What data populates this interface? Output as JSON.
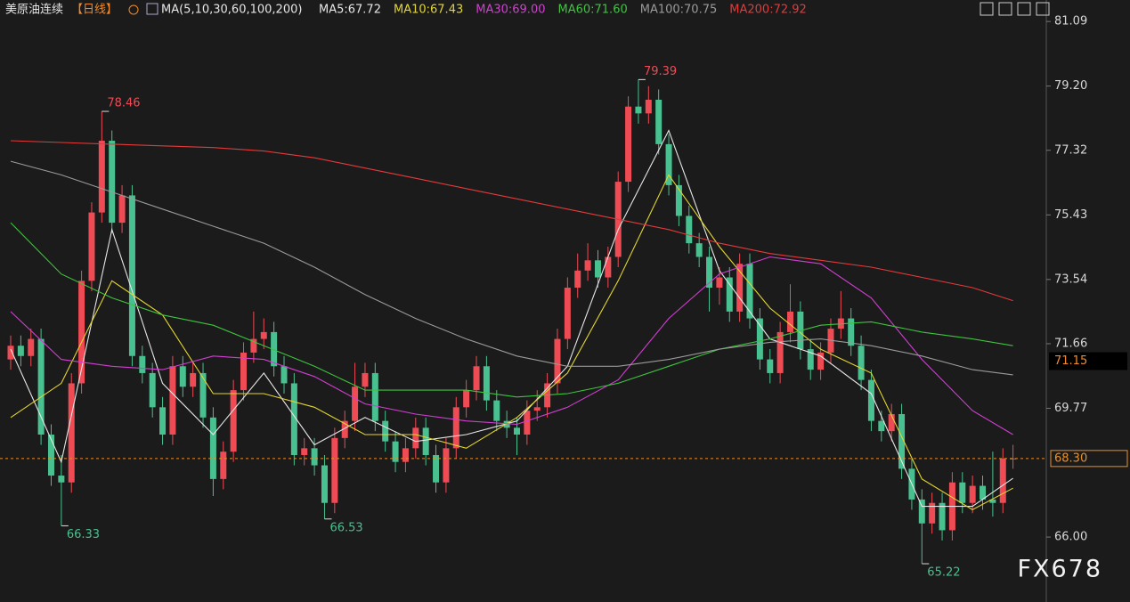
{
  "chart_data": {
    "type": "candlestick",
    "title": "美原油连续",
    "period": "【日线】",
    "indicator": "MA(5,10,30,60,100,200)",
    "watermark": "FX678",
    "up_color": "#ee4b55",
    "down_color": "#49c08f",
    "ylim": [
      64.1,
      81.25
    ],
    "yticks": [
      {
        "value": 66.0,
        "label": "66.00"
      },
      69.77,
      71.66,
      73.54,
      75.43,
      77.32,
      {
        "value": 79.2,
        "label": "79.20"
      },
      81.09
    ],
    "last_price": {
      "value": 68.3,
      "label": "68.30"
    },
    "cursor_price": 71.15,
    "open": [
      71.2,
      71.6,
      71.3,
      71.8,
      69.0,
      67.8,
      67.6,
      70.5,
      73.5,
      75.5,
      77.6,
      75.2,
      76.0,
      71.3,
      70.8,
      69.8,
      69.0,
      71.0,
      70.4,
      70.8,
      69.5,
      67.7,
      68.5,
      70.3,
      71.4,
      71.8,
      72.0,
      71.0,
      70.5,
      68.4,
      68.6,
      68.1,
      67.0,
      68.9,
      69.4,
      70.4,
      70.8,
      69.4,
      68.8,
      68.2,
      68.6,
      69.2,
      68.4,
      67.6,
      68.6,
      69.8,
      70.3,
      71.0,
      70.0,
      69.4,
      69.2,
      69.0,
      69.7,
      69.8,
      70.5,
      71.8,
      73.3,
      73.8,
      74.1,
      73.6,
      74.2,
      76.4,
      78.6,
      78.4,
      78.8,
      77.5,
      76.3,
      75.4,
      74.6,
      74.2,
      73.3,
      73.6,
      72.6,
      74.0,
      72.4,
      71.2,
      70.8,
      72.0,
      72.6,
      71.5,
      70.9,
      71.4,
      72.1,
      72.4,
      71.6,
      70.6,
      69.4,
      69.1,
      69.6,
      68.0,
      67.1,
      66.4,
      67.0,
      66.2,
      67.6,
      67.0,
      67.5,
      67.1,
      67.0,
      68.3
    ],
    "high": [
      71.9,
      71.9,
      72.1,
      72.1,
      69.3,
      68.4,
      70.8,
      73.8,
      75.8,
      78.46,
      77.9,
      76.3,
      76.3,
      71.6,
      71.1,
      70.1,
      71.3,
      71.3,
      71.1,
      71.1,
      69.8,
      68.8,
      70.6,
      71.7,
      72.6,
      72.4,
      72.3,
      71.3,
      70.8,
      68.9,
      68.9,
      68.4,
      69.2,
      69.7,
      71.1,
      71.1,
      71.1,
      69.7,
      69.1,
      68.9,
      69.5,
      69.5,
      68.7,
      68.9,
      70.1,
      70.6,
      71.3,
      71.3,
      70.3,
      69.7,
      69.5,
      70.0,
      70.3,
      70.8,
      72.1,
      73.6,
      74.3,
      74.6,
      74.4,
      74.5,
      76.7,
      78.9,
      79.39,
      79.2,
      79.1,
      77.8,
      76.6,
      75.7,
      74.9,
      74.5,
      73.9,
      73.9,
      74.3,
      74.3,
      72.7,
      71.5,
      72.3,
      73.4,
      72.9,
      71.8,
      71.7,
      72.4,
      73.2,
      72.7,
      71.9,
      70.9,
      69.7,
      69.9,
      69.9,
      68.3,
      67.4,
      67.3,
      67.3,
      67.9,
      67.9,
      67.8,
      67.8,
      68.5,
      68.6,
      68.7
    ],
    "low": [
      70.9,
      71.0,
      71.0,
      68.7,
      67.5,
      66.33,
      67.3,
      70.2,
      73.2,
      75.2,
      74.9,
      74.9,
      71.0,
      70.5,
      69.5,
      68.7,
      68.7,
      70.1,
      70.1,
      69.2,
      67.2,
      67.4,
      68.2,
      70.0,
      71.1,
      71.5,
      70.7,
      70.2,
      68.1,
      68.1,
      67.8,
      66.53,
      66.7,
      68.6,
      69.1,
      70.1,
      69.1,
      68.5,
      67.9,
      67.9,
      68.3,
      68.1,
      67.3,
      67.3,
      68.3,
      69.5,
      70.0,
      69.7,
      69.1,
      68.9,
      68.4,
      68.7,
      69.4,
      69.5,
      70.2,
      71.5,
      73.0,
      73.5,
      73.3,
      73.3,
      73.9,
      76.1,
      78.1,
      78.1,
      77.2,
      76.0,
      75.1,
      74.3,
      73.9,
      72.6,
      72.8,
      72.3,
      72.3,
      72.1,
      70.9,
      70.5,
      70.5,
      71.7,
      71.2,
      70.6,
      70.6,
      71.1,
      71.8,
      71.3,
      70.3,
      69.1,
      68.8,
      68.8,
      67.7,
      66.8,
      65.22,
      66.1,
      65.9,
      65.9,
      66.7,
      66.7,
      66.8,
      66.6,
      66.7,
      68.0
    ],
    "close": [
      71.6,
      71.3,
      71.8,
      69.0,
      67.8,
      67.6,
      70.5,
      73.5,
      75.5,
      77.6,
      75.2,
      76.0,
      71.3,
      70.8,
      69.8,
      69.0,
      71.0,
      70.4,
      70.8,
      69.5,
      67.7,
      68.5,
      70.3,
      71.4,
      71.8,
      72.0,
      71.0,
      70.5,
      68.4,
      68.6,
      68.1,
      67.0,
      68.9,
      69.4,
      70.4,
      70.8,
      69.4,
      68.8,
      68.2,
      68.6,
      69.2,
      68.4,
      67.6,
      68.6,
      69.8,
      70.3,
      71.0,
      70.0,
      69.4,
      69.2,
      69.0,
      69.7,
      69.8,
      70.5,
      71.8,
      73.3,
      73.8,
      74.1,
      73.6,
      74.2,
      76.4,
      78.6,
      78.4,
      78.8,
      77.5,
      76.3,
      75.4,
      74.6,
      74.2,
      73.3,
      73.6,
      72.6,
      74.0,
      72.4,
      71.2,
      70.8,
      72.0,
      72.6,
      71.5,
      70.9,
      71.4,
      72.1,
      72.4,
      71.6,
      70.6,
      69.4,
      69.1,
      69.6,
      68.0,
      67.1,
      66.4,
      67.0,
      66.2,
      67.6,
      67.0,
      67.5,
      67.1,
      67.0,
      68.3,
      68.3
    ],
    "series": [
      {
        "name": "MA5:67.72",
        "color": "#e6e6e6",
        "x": [
          0,
          5,
          10,
          15,
          20,
          25,
          30,
          35,
          40,
          45,
          50,
          55,
          60,
          65,
          70,
          75,
          80,
          85,
          90,
          95,
          99
        ],
        "values": [
          71.5,
          68.2,
          75.0,
          70.5,
          69.0,
          70.8,
          68.7,
          69.5,
          68.8,
          69.0,
          69.4,
          71.0,
          75.0,
          77.9,
          73.8,
          71.8,
          71.3,
          70.2,
          66.9,
          66.9,
          67.72
        ]
      },
      {
        "name": "MA10:67.43",
        "color": "#e3d630",
        "x": [
          0,
          5,
          10,
          15,
          20,
          25,
          30,
          35,
          40,
          45,
          50,
          55,
          60,
          65,
          70,
          75,
          80,
          85,
          90,
          95,
          99
        ],
        "values": [
          69.5,
          70.5,
          73.5,
          72.5,
          70.2,
          70.2,
          69.8,
          69.0,
          69.0,
          68.6,
          69.5,
          70.8,
          73.5,
          76.6,
          74.5,
          72.7,
          71.5,
          70.8,
          67.7,
          66.8,
          67.43
        ]
      },
      {
        "name": "MA30:69.00",
        "color": "#d23fd2",
        "x": [
          0,
          5,
          10,
          15,
          20,
          25,
          30,
          35,
          40,
          45,
          50,
          55,
          60,
          65,
          70,
          75,
          80,
          85,
          90,
          95,
          99
        ],
        "values": [
          72.6,
          71.2,
          71.0,
          70.9,
          71.3,
          71.2,
          70.7,
          69.9,
          69.6,
          69.4,
          69.3,
          69.8,
          70.6,
          72.4,
          73.7,
          74.2,
          74.0,
          73.0,
          71.2,
          69.7,
          69.0
        ]
      },
      {
        "name": "MA60:71.60",
        "color": "#3ec43e",
        "x": [
          0,
          5,
          10,
          15,
          20,
          25,
          30,
          35,
          40,
          45,
          50,
          55,
          60,
          65,
          70,
          75,
          80,
          85,
          90,
          95,
          99
        ],
        "values": [
          75.2,
          73.7,
          73.0,
          72.5,
          72.2,
          71.6,
          71.0,
          70.3,
          70.3,
          70.3,
          70.1,
          70.2,
          70.5,
          71.0,
          71.5,
          71.8,
          72.2,
          72.3,
          72.0,
          71.8,
          71.6
        ]
      },
      {
        "name": "MA100:70.75",
        "color": "#9a9a9a",
        "x": [
          0,
          5,
          10,
          15,
          20,
          25,
          30,
          35,
          40,
          45,
          50,
          55,
          60,
          65,
          70,
          75,
          80,
          85,
          90,
          95,
          99
        ],
        "values": [
          77.0,
          76.6,
          76.1,
          75.6,
          75.1,
          74.6,
          73.9,
          73.1,
          72.4,
          71.8,
          71.3,
          71.0,
          71.0,
          71.2,
          71.5,
          71.7,
          71.8,
          71.6,
          71.3,
          70.9,
          70.75
        ]
      },
      {
        "name": "MA200:72.92",
        "color": "#e33a3a",
        "x": [
          0,
          5,
          10,
          15,
          20,
          25,
          30,
          35,
          40,
          45,
          50,
          55,
          60,
          65,
          70,
          75,
          80,
          85,
          90,
          95,
          99
        ],
        "values": [
          77.6,
          77.55,
          77.5,
          77.45,
          77.4,
          77.3,
          77.1,
          76.8,
          76.5,
          76.2,
          75.9,
          75.6,
          75.3,
          75.0,
          74.6,
          74.3,
          74.1,
          73.9,
          73.6,
          73.3,
          72.92
        ]
      }
    ]
  }
}
